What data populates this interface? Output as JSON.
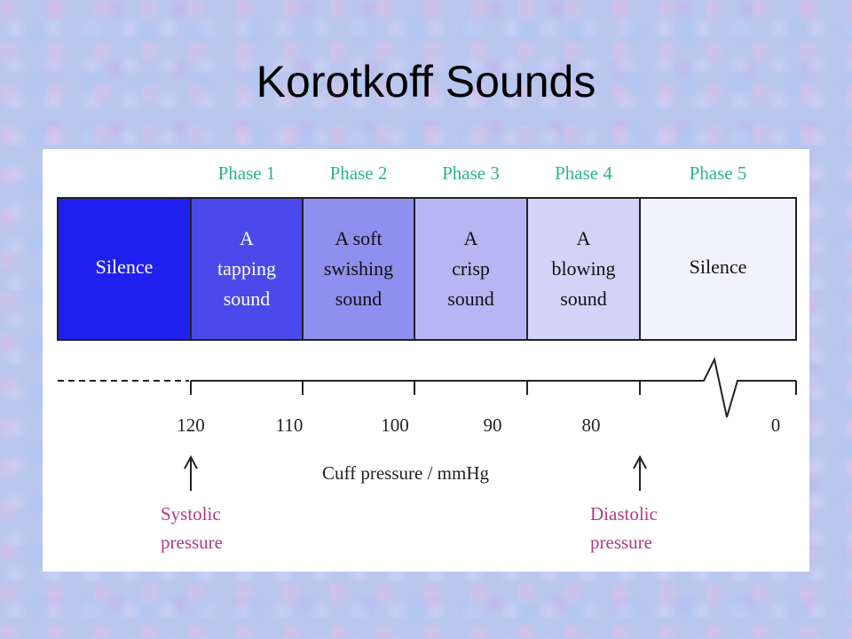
{
  "title": "Korotkoff Sounds",
  "phases": [
    {
      "label": "",
      "sound": [
        "Silence"
      ],
      "fill": "#2020ee",
      "text_color": "#ffffff"
    },
    {
      "label": "Phase 1",
      "sound": [
        "A",
        "tapping",
        "sound"
      ],
      "fill": "#4a4aea",
      "text_color": "#ffffff"
    },
    {
      "label": "Phase 2",
      "sound": [
        "A soft",
        "swishing",
        "sound"
      ],
      "fill": "#8f8fef",
      "text_color": "#111111"
    },
    {
      "label": "Phase 3",
      "sound": [
        "A",
        "crisp",
        "sound"
      ],
      "fill": "#b6b6f4",
      "text_color": "#111111"
    },
    {
      "label": "Phase 4",
      "sound": [
        "A",
        "blowing",
        "sound"
      ],
      "fill": "#d3d3f8",
      "text_color": "#111111"
    },
    {
      "label": "Phase 5",
      "sound": [
        "Silence"
      ],
      "fill": "#f2f2fd",
      "text_color": "#111111"
    }
  ],
  "ticks": [
    "120",
    "110",
    "100",
    "90",
    "80",
    "0"
  ],
  "axis_label": "Cuff pressure / mmHg",
  "markers": [
    {
      "label": [
        "Systolic",
        "pressure"
      ]
    },
    {
      "label": [
        "Diastolic",
        "pressure"
      ]
    }
  ],
  "colors": {
    "phase_label": "#2ab58c",
    "marker_label": "#b03a86"
  }
}
